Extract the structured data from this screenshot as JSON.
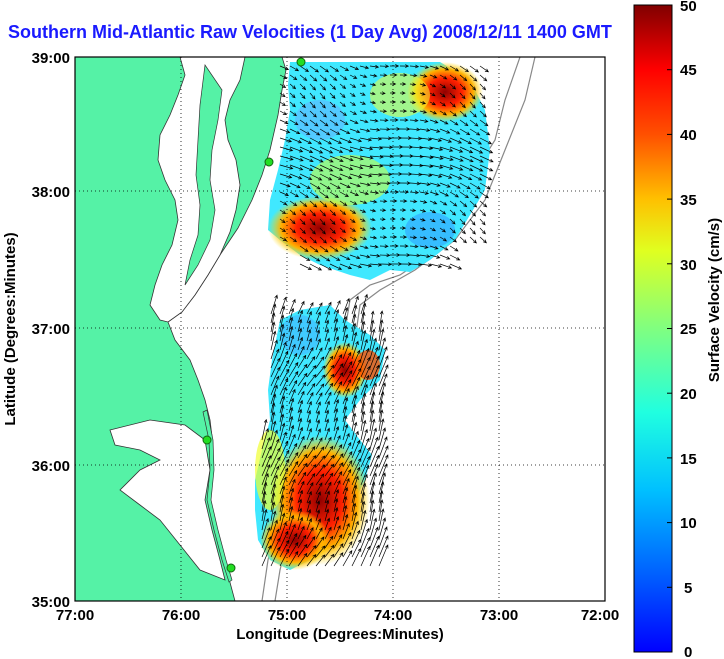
{
  "title": "Southern Mid-Atlantic Raw Velocities (1 Day Avg) 2008/12/11 1400 GMT",
  "map": {
    "xlabel": "Longitude (Degrees:Minutes)",
    "ylabel": "Latitude (Degrees:Minutes)",
    "x_ticks": [
      "77:00",
      "76:00",
      "75:00",
      "74:00",
      "73:00",
      "72:00"
    ],
    "y_ticks": [
      "39:00",
      "38:00",
      "37:00",
      "36:00",
      "35:00"
    ],
    "land_color": "#55f2a6",
    "water_color": "#ffffff",
    "arrow_color": "#000000",
    "station_color": "#22dd22"
  },
  "colorbar": {
    "label": "Surface Velocity (cm/s)",
    "ticks": [
      "50",
      "45",
      "40",
      "35",
      "30",
      "25",
      "20",
      "15",
      "10",
      "5",
      "0"
    ],
    "min": 0,
    "max": 50,
    "colormap": "jet"
  }
}
